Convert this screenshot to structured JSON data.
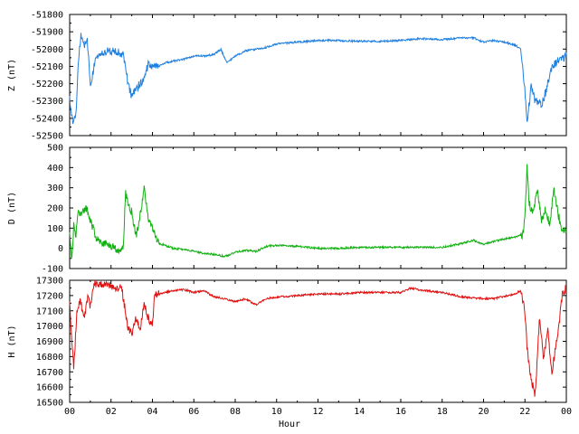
{
  "chart_data": [
    {
      "type": "line",
      "ylabel": "Z (nT)",
      "ylim": [
        -52500,
        -51800
      ],
      "yticks": [
        -51800,
        -51900,
        -52000,
        -52100,
        -52200,
        -52300,
        -52400,
        -52500
      ],
      "xlim": [
        0,
        24
      ],
      "grid": false,
      "color": "#1f7fe0",
      "series": [
        {
          "x": [
            0,
            0.15,
            0.3,
            0.45,
            0.55,
            0.7,
            0.85,
            1.0,
            1.2,
            1.5,
            1.8,
            2.2,
            2.6,
            2.8,
            3.0,
            3.2,
            3.4,
            3.6,
            3.8,
            4.0,
            4.3,
            4.6,
            5.0,
            5.5,
            6.0,
            6.5,
            7.0,
            7.3,
            7.6,
            8.0,
            8.5,
            9.0,
            9.5,
            10,
            11,
            12,
            13,
            14,
            15,
            16,
            17,
            18,
            19,
            19.5,
            20,
            20.5,
            21,
            21.5,
            21.8,
            22.0,
            22.1,
            22.3,
            22.5,
            22.8,
            23.0,
            23.3,
            23.6,
            23.9,
            24.0
          ],
          "values": [
            -52280,
            -52420,
            -52380,
            -52020,
            -51920,
            -51990,
            -51940,
            -52220,
            -52080,
            -52030,
            -52010,
            -52010,
            -52030,
            -52180,
            -52280,
            -52230,
            -52200,
            -52160,
            -52090,
            -52110,
            -52100,
            -52080,
            -52070,
            -52060,
            -52040,
            -52040,
            -52030,
            -52000,
            -52080,
            -52040,
            -52010,
            -52000,
            -51990,
            -51970,
            -51960,
            -51950,
            -51950,
            -51955,
            -51955,
            -51950,
            -51940,
            -51945,
            -51935,
            -51935,
            -51960,
            -51950,
            -51960,
            -51975,
            -52000,
            -52250,
            -52420,
            -52220,
            -52300,
            -52320,
            -52250,
            -52100,
            -52070,
            -52050,
            -52030
          ]
        }
      ]
    },
    {
      "type": "line",
      "ylabel": "D (nT)",
      "ylim": [
        -100,
        500
      ],
      "yticks": [
        -100,
        0,
        100,
        200,
        300,
        400,
        500
      ],
      "xlim": [
        0,
        24
      ],
      "grid": false,
      "color": "#10b010",
      "series": [
        {
          "x": [
            0,
            0.1,
            0.2,
            0.3,
            0.4,
            0.6,
            0.8,
            1.0,
            1.3,
            1.6,
            2.0,
            2.4,
            2.6,
            2.7,
            2.8,
            3.0,
            3.2,
            3.4,
            3.6,
            3.8,
            4.0,
            4.3,
            4.6,
            5.0,
            5.5,
            6.0,
            6.5,
            7.0,
            7.5,
            8.0,
            8.5,
            9.0,
            9.5,
            10,
            11,
            12,
            13,
            14,
            15,
            16,
            17,
            18,
            19,
            19.5,
            20,
            20.5,
            21,
            21.5,
            21.9,
            22.0,
            22.1,
            22.2,
            22.4,
            22.6,
            22.8,
            23.0,
            23.2,
            23.4,
            23.6,
            23.8,
            24.0
          ],
          "values": [
            90,
            -70,
            120,
            60,
            190,
            170,
            200,
            140,
            50,
            30,
            15,
            -25,
            20,
            280,
            230,
            180,
            60,
            160,
            290,
            150,
            100,
            25,
            15,
            0,
            -5,
            -15,
            -25,
            -30,
            -40,
            -20,
            -10,
            -15,
            10,
            15,
            10,
            0,
            0,
            5,
            5,
            5,
            5,
            5,
            25,
            40,
            20,
            35,
            45,
            55,
            70,
            150,
            400,
            220,
            180,
            280,
            140,
            200,
            110,
            300,
            170,
            90,
            80
          ]
        }
      ]
    },
    {
      "type": "line",
      "ylabel": "H (nT)",
      "xlabel": "Hour",
      "ylim": [
        16500,
        17300
      ],
      "yticks": [
        16500,
        16600,
        16700,
        16800,
        16900,
        17000,
        17100,
        17200,
        17300
      ],
      "xlim": [
        0,
        24
      ],
      "xticks": [
        "00",
        "02",
        "04",
        "06",
        "08",
        "10",
        "12",
        "14",
        "16",
        "18",
        "20",
        "22",
        "00"
      ],
      "grid": false,
      "color": "#e01010",
      "series": [
        {
          "x": [
            0,
            0.1,
            0.2,
            0.35,
            0.5,
            0.7,
            0.9,
            1.0,
            1.2,
            1.5,
            2.0,
            2.5,
            2.6,
            2.8,
            3.0,
            3.2,
            3.4,
            3.6,
            3.8,
            4.0,
            4.1,
            4.3,
            4.6,
            5.0,
            5.5,
            6.0,
            6.5,
            7.0,
            7.5,
            8.0,
            8.5,
            9.0,
            9.5,
            10,
            11,
            12,
            13,
            14,
            15,
            16,
            16.5,
            17,
            18,
            19,
            20,
            20.5,
            21,
            21.5,
            21.8,
            22.0,
            22.1,
            22.3,
            22.5,
            22.7,
            22.9,
            23.1,
            23.3,
            23.6,
            23.8,
            24.0
          ],
          "values": [
            17150,
            16900,
            16720,
            17100,
            17170,
            17050,
            17230,
            17120,
            17280,
            17270,
            17260,
            17250,
            17180,
            17000,
            16950,
            17050,
            16970,
            17150,
            17050,
            17000,
            17220,
            17210,
            17220,
            17230,
            17240,
            17220,
            17230,
            17190,
            17180,
            17160,
            17180,
            17140,
            17180,
            17190,
            17200,
            17210,
            17210,
            17220,
            17220,
            17220,
            17250,
            17235,
            17220,
            17190,
            17180,
            17180,
            17195,
            17210,
            17230,
            17100,
            16850,
            16650,
            16550,
            17050,
            16780,
            16980,
            16700,
            16950,
            17200,
            17250
          ]
        }
      ]
    }
  ]
}
